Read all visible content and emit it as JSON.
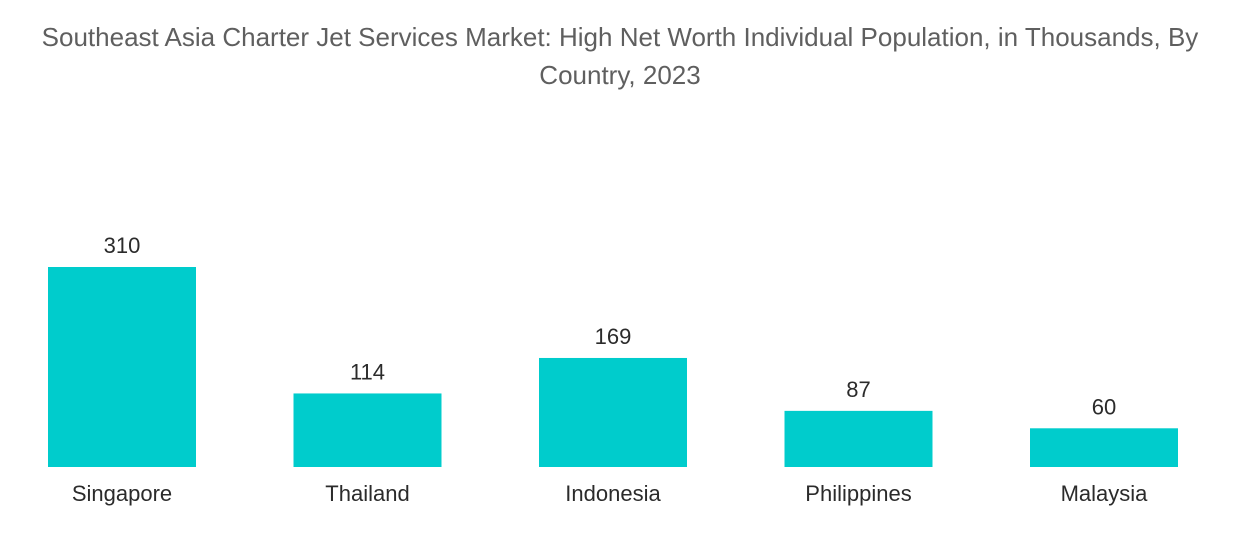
{
  "chart_data": {
    "type": "bar",
    "title": "Southeast Asia Charter Jet Services Market: High Net Worth Individual Population, in Thousands, By Country, 2023",
    "categories": [
      "Singapore",
      "Thailand",
      "Indonesia",
      "Philippines",
      "Malaysia"
    ],
    "values": [
      310,
      114,
      169,
      87,
      60
    ],
    "xlabel": "",
    "ylabel": "",
    "ylim": [
      0,
      310
    ],
    "grid": false,
    "legend": "none",
    "data_labels": true,
    "bar_color": "#00CCCC"
  }
}
